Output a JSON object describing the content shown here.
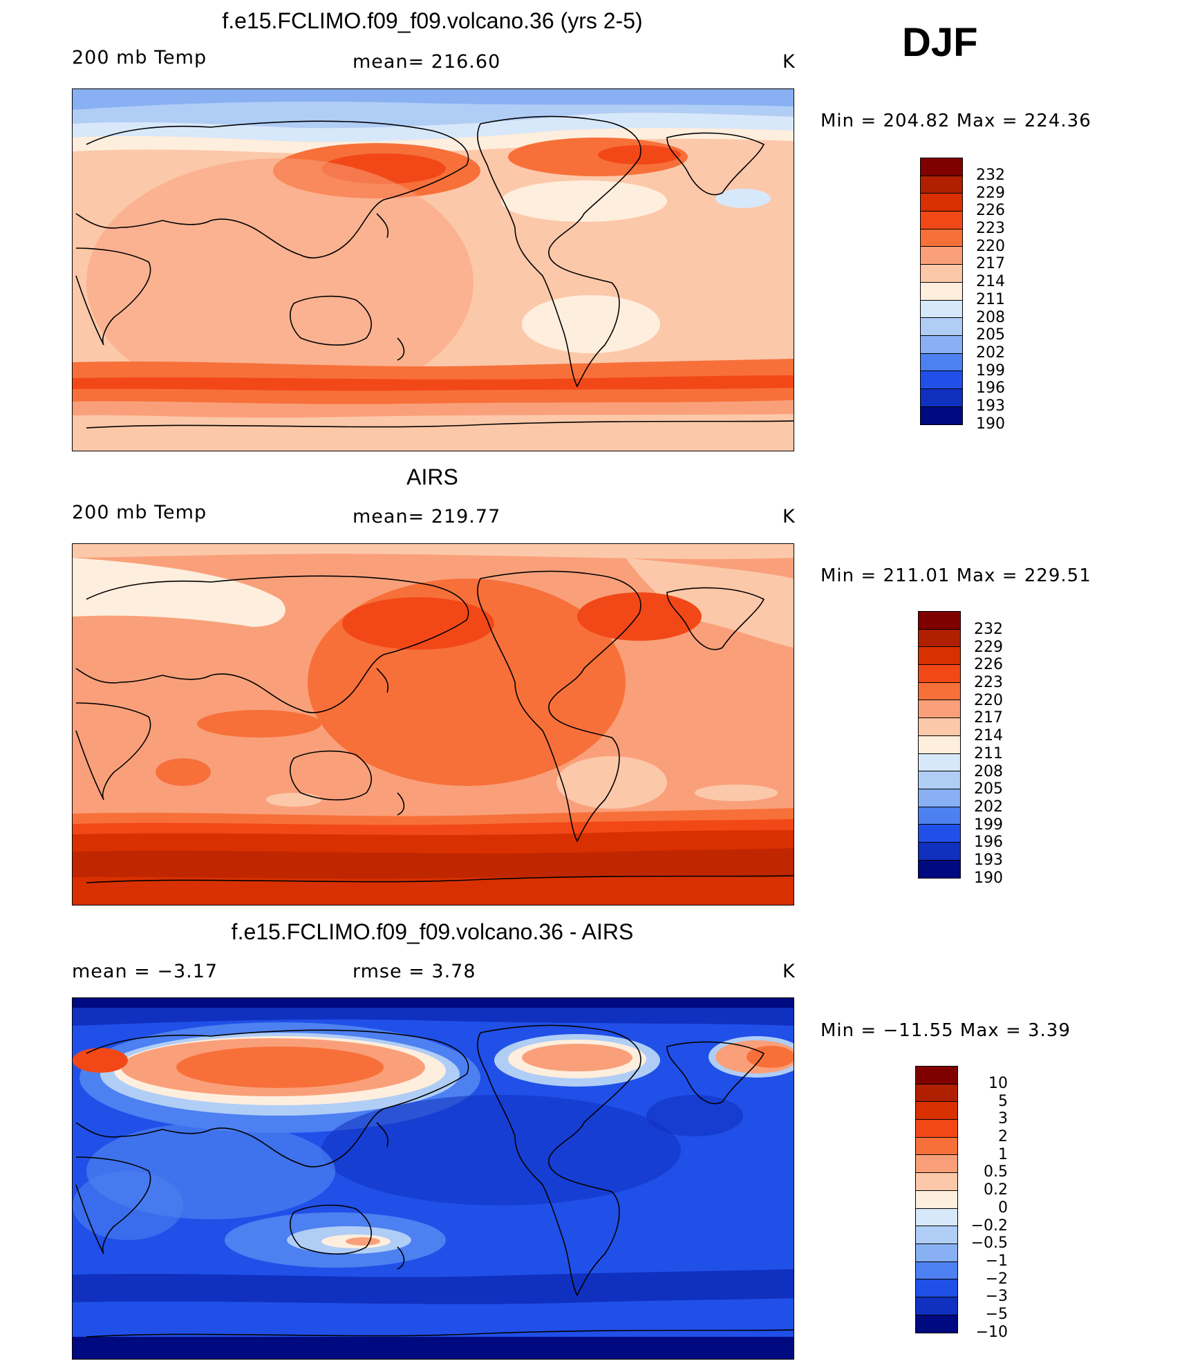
{
  "season": "DJF",
  "panels": [
    {
      "title": "f.e15.FCLIMO.f09_f09.volcano.36 (yrs 2-5)",
      "left_label": "200 mb Temp",
      "center_label": "mean= 216.60",
      "units": "K",
      "minmax": "Min = 204.82 Max = 224.36",
      "colorbar_labels": [
        "232",
        "229",
        "226",
        "223",
        "220",
        "217",
        "214",
        "211",
        "208",
        "205",
        "202",
        "199",
        "196",
        "193",
        "190"
      ]
    },
    {
      "title": "AIRS",
      "left_label": "200 mb Temp",
      "center_label": "mean= 219.77",
      "units": "K",
      "minmax": "Min = 211.01 Max = 229.51",
      "colorbar_labels": [
        "232",
        "229",
        "226",
        "223",
        "220",
        "217",
        "214",
        "211",
        "208",
        "205",
        "202",
        "199",
        "196",
        "193",
        "190"
      ]
    },
    {
      "title": "f.e15.FCLIMO.f09_f09.volcano.36 - AIRS",
      "left_label": "mean =   −3.17",
      "center_label": "rmse =    3.78",
      "units": "K",
      "minmax": "Min = −11.55 Max =    3.39",
      "colorbar_labels": [
        "10",
        "5",
        "3",
        "2",
        "1",
        "0.5",
        "0.2",
        "0",
        "−0.2",
        "−0.5",
        "−1",
        "−2",
        "−3",
        "−5",
        "−10"
      ]
    }
  ],
  "colors": {
    "abs_scale": [
      "#800000",
      "#b02000",
      "#d83000",
      "#f24818",
      "#f7703a",
      "#f9a07a",
      "#fcc8aa",
      "#feeedd",
      "#d8e8fb",
      "#b0cdf6",
      "#88b0f2",
      "#4d80f0",
      "#2050e8",
      "#1030c0",
      "#000a80"
    ],
    "diff_scale": [
      "#800000",
      "#b02000",
      "#d83000",
      "#f24818",
      "#f7703a",
      "#f9a07a",
      "#fcc8aa",
      "#feeedd",
      "#d8e8fb",
      "#b0cdf6",
      "#88b0f2",
      "#4d80f0",
      "#2050e8",
      "#1030c0",
      "#000a80"
    ]
  }
}
